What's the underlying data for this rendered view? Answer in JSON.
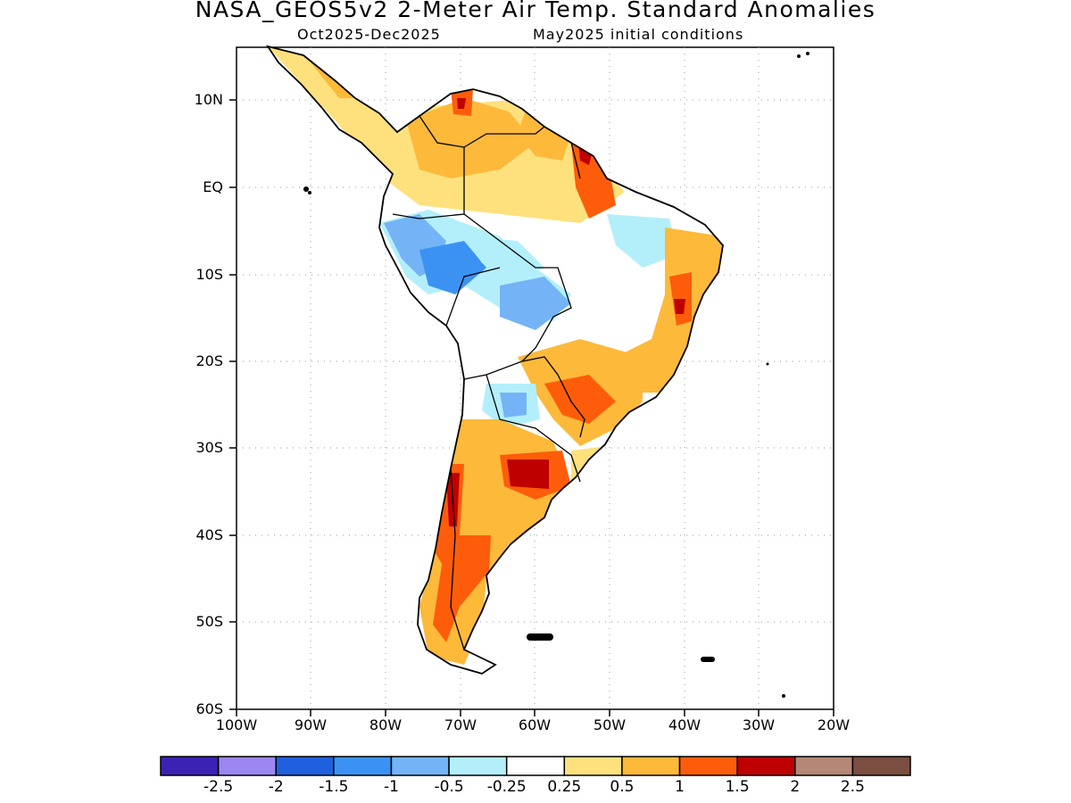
{
  "title": "NASA_GEOS5v2 2-Meter Air Temp. Standard Anomalies",
  "subtitle_period": "Oct2025-Dec2025",
  "subtitle_init": "May2025 initial conditions",
  "lat_ticks": [
    "10N",
    "EQ",
    "10S",
    "20S",
    "30S",
    "40S",
    "50S",
    "60S"
  ],
  "lon_ticks": [
    "100W",
    "90W",
    "80W",
    "70W",
    "60W",
    "50W",
    "40W",
    "30W",
    "20W"
  ],
  "colorbar": {
    "colors": [
      "#3c22b4",
      "#9c86f2",
      "#1f60df",
      "#3c92f3",
      "#74b4f6",
      "#b3effb",
      "#ffffff",
      "#fee17d",
      "#fdb93a",
      "#fd5d0a",
      "#bf0000",
      "#b48776",
      "#7a4e40"
    ],
    "labels": [
      "-2.5",
      "-2",
      "-1.5",
      "-1",
      "-0.5",
      "-0.25",
      "0.25",
      "0.5",
      "1",
      "1.5",
      "2",
      "2.5"
    ]
  },
  "map_extent": {
    "lon": [
      -100,
      -20
    ],
    "lat": [
      -60,
      15
    ]
  }
}
